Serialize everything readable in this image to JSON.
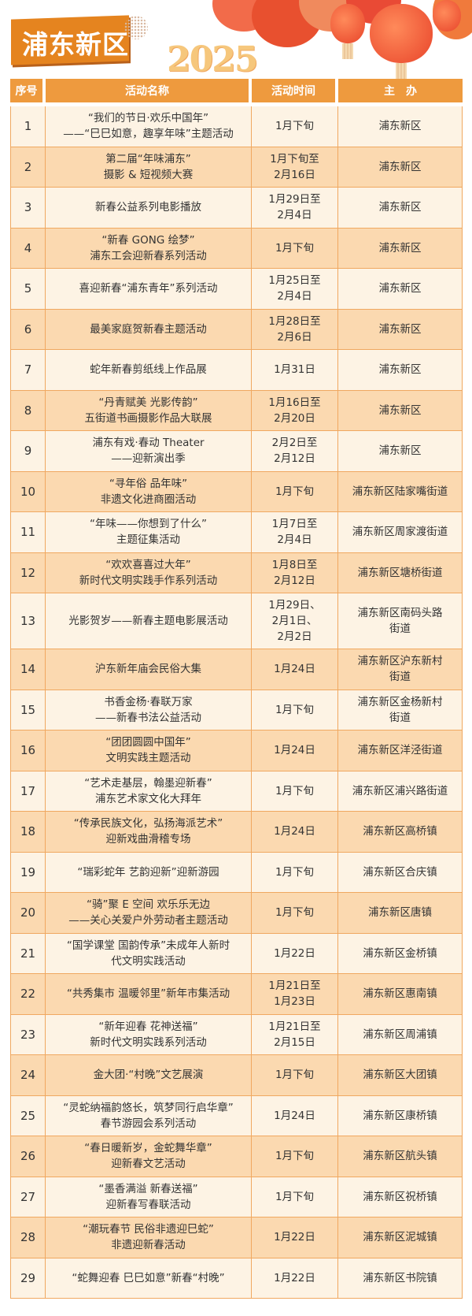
{
  "title": "浦东新区",
  "year_art": "2025",
  "colors": {
    "header": "#ee9a3e",
    "row_light": "#fdf3e4",
    "row_dark": "#fbd9b0",
    "border": "#f0a860",
    "banner": "#e5841f"
  },
  "columns": [
    "序号",
    "活动名称",
    "活动时间",
    "主　办"
  ],
  "rows": [
    {
      "no": "1",
      "name": "“我们的节日·欢乐中国年”\n——“巳巳如意，趣享年味”主题活动",
      "time": "1月下旬",
      "host": "浦东新区"
    },
    {
      "no": "2",
      "name": "第二届“年味浦东”\n摄影 & 短视频大赛",
      "time": "1月下旬至\n2月16日",
      "host": "浦东新区"
    },
    {
      "no": "3",
      "name": "新春公益系列电影播放",
      "time": "1月29日至\n2月4日",
      "host": "浦东新区"
    },
    {
      "no": "4",
      "name": "“新春 GONG 绘梦”\n浦东工会迎新春系列活动",
      "time": "1月下旬",
      "host": "浦东新区"
    },
    {
      "no": "5",
      "name": "喜迎新春“浦东青年”系列活动",
      "time": "1月25日至\n2月4日",
      "host": "浦东新区"
    },
    {
      "no": "6",
      "name": "最美家庭贺新春主题活动",
      "time": "1月28日至\n2月6日",
      "host": "浦东新区"
    },
    {
      "no": "7",
      "name": "蛇年新春剪纸线上作品展",
      "time": "1月31日",
      "host": "浦东新区"
    },
    {
      "no": "8",
      "name": "“丹青赋美 光影传韵”\n五街道书画摄影作品大联展",
      "time": "1月16日至\n2月20日",
      "host": "浦东新区"
    },
    {
      "no": "9",
      "name": "浦东有戏·春动 Theater\n——迎新演出季",
      "time": "2月2日至\n2月12日",
      "host": "浦东新区"
    },
    {
      "no": "10",
      "name": "“寻年俗 品年味”\n非遗文化进商圈活动",
      "time": "1月下旬",
      "host": "浦东新区陆家嘴街道"
    },
    {
      "no": "11",
      "name": "“年味——你想到了什么”\n主题征集活动",
      "time": "1月7日至\n2月4日",
      "host": "浦东新区周家渡街道"
    },
    {
      "no": "12",
      "name": "“欢欢喜喜过大年”\n新时代文明实践手作系列活动",
      "time": "1月8日至\n2月12日",
      "host": "浦东新区塘桥街道"
    },
    {
      "no": "13",
      "name": "光影贺岁——新春主题电影展活动",
      "time": "1月29日、\n2月1日、\n2月2日",
      "host": "浦东新区南码头路\n街道"
    },
    {
      "no": "14",
      "name": "沪东新年庙会民俗大集",
      "time": "1月24日",
      "host": "浦东新区沪东新村\n街道"
    },
    {
      "no": "15",
      "name": "书香金杨·春联万家\n——新春书法公益活动",
      "time": "1月下旬",
      "host": "浦东新区金杨新村\n街道"
    },
    {
      "no": "16",
      "name": "“团团圆圆中国年”\n文明实践主题活动",
      "time": "1月24日",
      "host": "浦东新区洋泾街道"
    },
    {
      "no": "17",
      "name": "“艺术走基层，翰墨迎新春”\n浦东艺术家文化大拜年",
      "time": "1月下旬",
      "host": "浦东新区浦兴路街道"
    },
    {
      "no": "18",
      "name": "“传承民族文化，弘扬海派艺术”\n迎新戏曲滑稽专场",
      "time": "1月24日",
      "host": "浦东新区高桥镇"
    },
    {
      "no": "19",
      "name": "“瑞彩蛇年 艺韵迎新”迎新游园",
      "time": "1月下旬",
      "host": "浦东新区合庆镇"
    },
    {
      "no": "20",
      "name": "“骑”聚 E 空间 欢乐乐无边\n——关心关爱户外劳动者主题活动",
      "time": "1月下旬",
      "host": "浦东新区唐镇"
    },
    {
      "no": "21",
      "name": "“国学课堂 国韵传承”未成年人新时\n代文明实践活动",
      "time": "1月22日",
      "host": "浦东新区金桥镇"
    },
    {
      "no": "22",
      "name": "“共秀集市 温暖邻里”新年市集活动",
      "time": "1月21日至\n1月23日",
      "host": "浦东新区惠南镇"
    },
    {
      "no": "23",
      "name": "“新年迎春 花神送福”\n新时代文明实践系列活动",
      "time": "1月21日至\n2月15日",
      "host": "浦东新区周浦镇"
    },
    {
      "no": "24",
      "name": "金大团·“村晚”文艺展演",
      "time": "1月下旬",
      "host": "浦东新区大团镇"
    },
    {
      "no": "25",
      "name": "“灵蛇纳福韵悠长，筑梦同行启华章”\n春节游园会系列活动",
      "time": "1月24日",
      "host": "浦东新区康桥镇"
    },
    {
      "no": "26",
      "name": "“春日暖新岁，金蛇舞华章”\n迎新春文艺活动",
      "time": "1月下旬",
      "host": "浦东新区航头镇"
    },
    {
      "no": "27",
      "name": "“墨香满溢 新春送福”\n迎新春写春联活动",
      "time": "1月下旬",
      "host": "浦东新区祝桥镇"
    },
    {
      "no": "28",
      "name": "“潮玩春节 民俗非遗迎巳蛇”\n非遗迎新春活动",
      "time": "1月22日",
      "host": "浦东新区泥城镇"
    },
    {
      "no": "29",
      "name": "“蛇舞迎春 巳巳如意”新春“村晚”",
      "time": "1月22日",
      "host": "浦东新区书院镇"
    }
  ]
}
